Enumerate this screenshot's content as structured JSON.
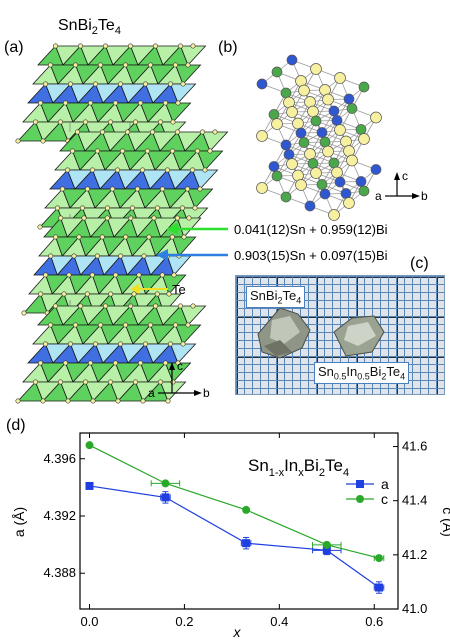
{
  "panels": {
    "a": {
      "label": "(a)",
      "title": "SnBi",
      "title_sub": "2",
      "title_tail": "Te",
      "title_sub2": "4"
    },
    "b": {
      "label": "(b)"
    },
    "c": {
      "label": "(c)"
    },
    "d": {
      "label": "(d)"
    }
  },
  "annotations": {
    "green_site": "0.041(12)Sn + 0.959(12)Bi",
    "blue_site": "0.903(15)Sn + 0.097(15)Bi",
    "te_site": "Te"
  },
  "axes_legend": {
    "a": "a",
    "b": "b",
    "c": "c"
  },
  "photo": {
    "label_top": {
      "text": "SnBi",
      "sub1": "2",
      "mid": "Te",
      "sub2": "4"
    },
    "label_bottom": {
      "p1": "Sn",
      "s1": "0.5",
      "p2": "In",
      "s2": "0.5",
      "p3": "Bi",
      "s3": "2",
      "p4": "Te",
      "s4": "4"
    }
  },
  "colors": {
    "green": "#5fd15f",
    "light_green": "#b9f0a8",
    "blue": "#3f6fe0",
    "light_blue": "#aee4f4",
    "te": "#f6f0a0",
    "series_a": "#1f3fe0",
    "series_c": "#2aa82a"
  },
  "chart_data": {
    "type": "line",
    "title_parts": {
      "p1": "Sn",
      "s1": "1-x",
      "p2": "In",
      "s2": "x",
      "p3": "Bi",
      "s3": "2",
      "p4": "Te",
      "s4": "4"
    },
    "xlabel": "x",
    "ylabel_left": "a (Å)",
    "ylabel_right": "c (Å)",
    "xlim": [
      -0.02,
      0.65
    ],
    "ylim_left": [
      4.3855,
      4.3978
    ],
    "ylim_right": [
      41.0,
      41.65
    ],
    "x_ticks": [
      "0.0",
      "0.2",
      "0.4",
      "0.6"
    ],
    "x_tick_values": [
      0.0,
      0.2,
      0.4,
      0.6
    ],
    "y_left_ticks": [
      "4.388",
      "4.392",
      "4.396"
    ],
    "y_left_tick_values": [
      4.388,
      4.392,
      4.396
    ],
    "y_right_ticks": [
      "41.0",
      "41.2",
      "41.4",
      "41.6"
    ],
    "y_right_tick_values": [
      41.0,
      41.2,
      41.4,
      41.6
    ],
    "series": [
      {
        "name": "a",
        "axis": "left",
        "marker": "square",
        "x": [
          0.0,
          0.16,
          0.33,
          0.5,
          0.61
        ],
        "y": [
          4.3941,
          4.3933,
          4.3901,
          4.3896,
          4.387
        ],
        "xerr": [
          0.0,
          0.01,
          0.01,
          0.03,
          0.01
        ],
        "yerr": [
          0.0,
          0.0004,
          0.0004,
          0.0003,
          0.0004
        ]
      },
      {
        "name": "c",
        "axis": "right",
        "marker": "circle",
        "x": [
          0.0,
          0.16,
          0.33,
          0.5,
          0.61
        ],
        "y": [
          41.605,
          41.464,
          41.366,
          41.237,
          41.188
        ],
        "xerr": [
          0.0,
          0.03,
          0.0,
          0.03,
          0.01
        ],
        "yerr": [
          0.0,
          0.0,
          0.0,
          0.0,
          0.0
        ]
      }
    ],
    "legend_position": "top-right"
  }
}
